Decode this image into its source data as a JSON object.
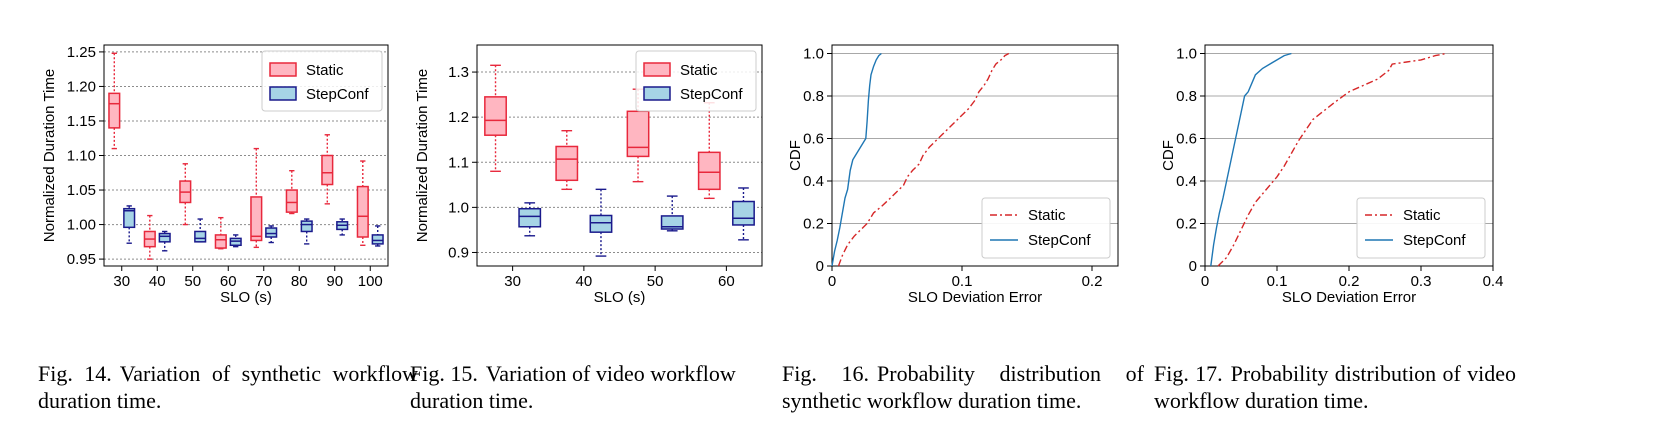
{
  "captions": [
    {
      "num": "Fig. 14.",
      "text": "Variation of synthetic workflow duration time."
    },
    {
      "num": "Fig. 15.",
      "text": "Variation of video workflow duration time."
    },
    {
      "num": "Fig. 16.",
      "text": "Probability distribution of synthetic workflow duration time."
    },
    {
      "num": "Fig. 17.",
      "text": "Probability distribution of video workflow duration time."
    }
  ],
  "colors": {
    "static_edge": "#e8283c",
    "static_fill": "#ffb6c1",
    "stepconf_edge": "#1a1a8c",
    "stepconf_fill": "#a6d4e6",
    "cdf_static": "#d62728",
    "cdf_stepconf": "#1f77b4",
    "grid": "#9a9a9a"
  },
  "chart_data": [
    {
      "type": "boxplot",
      "xlabel": "SLO (s)",
      "ylabel": "Normalized Duration Time",
      "ylim": [
        0.94,
        1.26
      ],
      "yticks": [
        0.95,
        1.0,
        1.05,
        1.1,
        1.15,
        1.2,
        1.25
      ],
      "ytick_labels": [
        "0.95",
        "1.00",
        "1.05",
        "1.10",
        "1.15",
        "1.20",
        "1.25"
      ],
      "categories": [
        "30",
        "40",
        "50",
        "60",
        "70",
        "80",
        "90",
        "100"
      ],
      "grid": "horizontal-dotted",
      "legend_position": "upper-right",
      "series": [
        {
          "name": "Static",
          "boxes": [
            {
              "whislo": 1.11,
              "q1": 1.14,
              "med": 1.175,
              "q3": 1.19,
              "whishi": 1.248
            },
            {
              "whislo": 0.95,
              "q1": 0.968,
              "med": 0.979,
              "q3": 0.99,
              "whishi": 1.013
            },
            {
              "whislo": 1.0,
              "q1": 1.032,
              "med": 1.047,
              "q3": 1.063,
              "whishi": 1.088
            },
            {
              "whislo": 0.965,
              "q1": 0.966,
              "med": 0.978,
              "q3": 0.985,
              "whishi": 1.01
            },
            {
              "whislo": 0.967,
              "q1": 0.977,
              "med": 0.983,
              "q3": 1.04,
              "whishi": 1.11
            },
            {
              "whislo": 1.016,
              "q1": 1.018,
              "med": 1.032,
              "q3": 1.05,
              "whishi": 1.078
            },
            {
              "whislo": 1.03,
              "q1": 1.058,
              "med": 1.075,
              "q3": 1.1,
              "whishi": 1.13
            },
            {
              "whislo": 0.97,
              "q1": 0.982,
              "med": 1.012,
              "q3": 1.055,
              "whishi": 1.092
            }
          ]
        },
        {
          "name": "StepConf",
          "boxes": [
            {
              "whislo": 0.973,
              "q1": 0.996,
              "med": 1.02,
              "q3": 1.023,
              "whishi": 1.027
            },
            {
              "whislo": 0.962,
              "q1": 0.975,
              "med": 0.983,
              "q3": 0.987,
              "whishi": 0.99
            },
            {
              "whislo": 0.975,
              "q1": 0.975,
              "med": 0.98,
              "q3": 0.99,
              "whishi": 1.008
            },
            {
              "whislo": 0.968,
              "q1": 0.97,
              "med": 0.976,
              "q3": 0.98,
              "whishi": 0.985
            },
            {
              "whislo": 0.974,
              "q1": 0.982,
              "med": 0.987,
              "q3": 0.995,
              "whishi": 0.998
            },
            {
              "whislo": 0.972,
              "q1": 0.99,
              "med": 1.0,
              "q3": 1.005,
              "whishi": 1.008
            },
            {
              "whislo": 0.985,
              "q1": 0.993,
              "med": 0.999,
              "q3": 1.004,
              "whishi": 1.008
            },
            {
              "whislo": 0.969,
              "q1": 0.972,
              "med": 0.977,
              "q3": 0.985,
              "whishi": 0.998
            }
          ]
        }
      ]
    },
    {
      "type": "boxplot",
      "xlabel": "SLO (s)",
      "ylabel": "Normalized Duration Time",
      "ylim": [
        0.87,
        1.36
      ],
      "yticks": [
        0.9,
        1.0,
        1.1,
        1.2,
        1.3
      ],
      "ytick_labels": [
        "0.9",
        "1.0",
        "1.1",
        "1.2",
        "1.3"
      ],
      "categories": [
        "30",
        "40",
        "50",
        "60"
      ],
      "grid": "horizontal-dotted",
      "legend_position": "upper-right",
      "series": [
        {
          "name": "Static",
          "boxes": [
            {
              "whislo": 1.08,
              "q1": 1.16,
              "med": 1.193,
              "q3": 1.245,
              "whishi": 1.315
            },
            {
              "whislo": 1.04,
              "q1": 1.06,
              "med": 1.107,
              "q3": 1.135,
              "whishi": 1.17
            },
            {
              "whislo": 1.057,
              "q1": 1.113,
              "med": 1.133,
              "q3": 1.213,
              "whishi": 1.262
            },
            {
              "whislo": 1.02,
              "q1": 1.04,
              "med": 1.078,
              "q3": 1.122,
              "whishi": 1.232
            }
          ]
        },
        {
          "name": "StepConf",
          "boxes": [
            {
              "whislo": 0.937,
              "q1": 0.957,
              "med": 0.98,
              "q3": 0.997,
              "whishi": 1.01
            },
            {
              "whislo": 0.892,
              "q1": 0.945,
              "med": 0.966,
              "q3": 0.982,
              "whishi": 1.04
            },
            {
              "whislo": 0.948,
              "q1": 0.952,
              "med": 0.957,
              "q3": 0.981,
              "whishi": 1.025
            },
            {
              "whislo": 0.928,
              "q1": 0.961,
              "med": 0.976,
              "q3": 1.013,
              "whishi": 1.043
            }
          ]
        }
      ]
    },
    {
      "type": "line",
      "xlabel": "SLO Deviation Error",
      "ylabel": "CDF",
      "xlim": [
        0,
        0.22
      ],
      "ylim": [
        0,
        1.04
      ],
      "xticks": [
        0,
        0.1,
        0.2
      ],
      "xtick_labels": [
        "0",
        "0.1",
        "0.2"
      ],
      "yticks": [
        0,
        0.2,
        0.4,
        0.6,
        0.8,
        1.0
      ],
      "ytick_labels": [
        "0",
        "0.2",
        "0.4",
        "0.6",
        "0.8",
        "1.0"
      ],
      "grid": "horizontal",
      "legend_position": "lower-right",
      "series": [
        {
          "name": "Static",
          "style": "dashdot",
          "x": [
            0.005,
            0.008,
            0.012,
            0.017,
            0.022,
            0.027,
            0.032,
            0.038,
            0.045,
            0.05,
            0.055,
            0.058,
            0.062,
            0.067,
            0.07,
            0.075,
            0.08,
            0.085,
            0.09,
            0.095,
            0.1,
            0.105,
            0.11,
            0.113,
            0.117,
            0.12,
            0.123,
            0.126,
            0.13,
            0.133,
            0.136
          ],
          "y": [
            0.0,
            0.05,
            0.1,
            0.14,
            0.17,
            0.2,
            0.25,
            0.28,
            0.32,
            0.35,
            0.38,
            0.42,
            0.45,
            0.48,
            0.52,
            0.56,
            0.59,
            0.62,
            0.65,
            0.68,
            0.71,
            0.74,
            0.78,
            0.82,
            0.85,
            0.88,
            0.92,
            0.95,
            0.97,
            0.99,
            1.0
          ]
        },
        {
          "name": "StepConf",
          "style": "solid",
          "x": [
            0.0,
            0.002,
            0.004,
            0.006,
            0.008,
            0.01,
            0.012,
            0.014,
            0.016,
            0.018,
            0.02,
            0.022,
            0.024,
            0.026,
            0.027,
            0.028,
            0.029,
            0.03,
            0.032,
            0.034,
            0.036,
            0.038
          ],
          "y": [
            0.0,
            0.07,
            0.12,
            0.18,
            0.25,
            0.32,
            0.36,
            0.45,
            0.5,
            0.52,
            0.54,
            0.56,
            0.58,
            0.6,
            0.68,
            0.78,
            0.85,
            0.9,
            0.94,
            0.97,
            0.99,
            1.0
          ]
        }
      ]
    },
    {
      "type": "line",
      "xlabel": "SLO Deviation Error",
      "ylabel": "CDF",
      "xlim": [
        0,
        0.4
      ],
      "ylim": [
        0,
        1.04
      ],
      "xticks": [
        0,
        0.1,
        0.2,
        0.3,
        0.4
      ],
      "xtick_labels": [
        "0",
        "0.1",
        "0.2",
        "0.3",
        "0.4"
      ],
      "yticks": [
        0,
        0.2,
        0.4,
        0.6,
        0.8,
        1.0
      ],
      "ytick_labels": [
        "0",
        "0.2",
        "0.4",
        "0.6",
        "0.8",
        "1.0"
      ],
      "grid": "horizontal",
      "legend_position": "lower-right",
      "series": [
        {
          "name": "Static",
          "style": "dashdot",
          "x": [
            0.018,
            0.03,
            0.04,
            0.05,
            0.06,
            0.07,
            0.08,
            0.09,
            0.1,
            0.11,
            0.12,
            0.13,
            0.14,
            0.15,
            0.165,
            0.18,
            0.2,
            0.22,
            0.24,
            0.255,
            0.26,
            0.28,
            0.3,
            0.32,
            0.335
          ],
          "y": [
            0.0,
            0.04,
            0.1,
            0.17,
            0.24,
            0.3,
            0.34,
            0.38,
            0.42,
            0.47,
            0.53,
            0.59,
            0.64,
            0.69,
            0.73,
            0.77,
            0.82,
            0.85,
            0.88,
            0.92,
            0.95,
            0.96,
            0.97,
            0.99,
            1.0
          ]
        },
        {
          "name": "StepConf",
          "style": "solid",
          "x": [
            0.008,
            0.012,
            0.016,
            0.02,
            0.025,
            0.03,
            0.035,
            0.04,
            0.045,
            0.05,
            0.055,
            0.06,
            0.065,
            0.07,
            0.08,
            0.09,
            0.1,
            0.11,
            0.12
          ],
          "y": [
            0.0,
            0.1,
            0.18,
            0.25,
            0.32,
            0.4,
            0.48,
            0.56,
            0.64,
            0.72,
            0.8,
            0.82,
            0.86,
            0.9,
            0.93,
            0.95,
            0.97,
            0.99,
            1.0
          ]
        }
      ]
    }
  ]
}
